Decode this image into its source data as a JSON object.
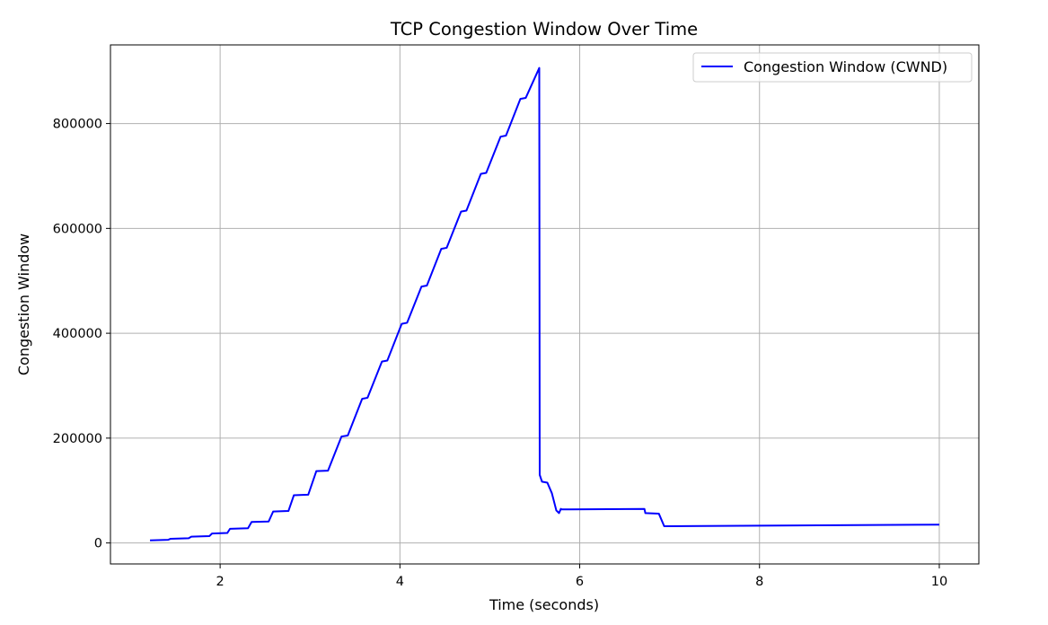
{
  "chart_data": {
    "type": "line",
    "title": "TCP Congestion Window Over Time",
    "xlabel": "Time (seconds)",
    "ylabel": "Congestion Window",
    "xlim": [
      0.78,
      10.44
    ],
    "ylim": [
      -40000,
      950000
    ],
    "x_ticks": [
      2,
      4,
      6,
      8,
      10
    ],
    "x_tick_labels": [
      "2",
      "4",
      "6",
      "8",
      "10"
    ],
    "y_ticks": [
      0,
      200000,
      400000,
      600000,
      800000
    ],
    "y_tick_labels": [
      "0",
      "200000",
      "400000",
      "600000",
      "800000"
    ],
    "grid": true,
    "legend": "top-right",
    "series": [
      {
        "name": "Congestion Window (CWND)",
        "color": "#0000ff",
        "x": [
          1.22,
          1.42,
          1.45,
          1.65,
          1.68,
          1.88,
          1.91,
          2.08,
          2.11,
          2.31,
          2.35,
          2.54,
          2.59,
          2.76,
          2.82,
          2.98,
          3.07,
          3.2,
          3.35,
          3.42,
          3.58,
          3.64,
          3.8,
          3.86,
          4.02,
          4.08,
          4.24,
          4.3,
          4.46,
          4.52,
          4.68,
          4.74,
          4.9,
          4.96,
          5.12,
          5.18,
          5.34,
          5.4,
          5.55,
          5.555,
          5.58,
          5.64,
          5.69,
          5.74,
          5.77,
          5.79,
          5.8,
          6.72,
          6.73,
          6.88,
          6.94,
          10.0
        ],
        "y": [
          5000,
          6000,
          8000,
          9000,
          12000,
          13000,
          18000,
          19000,
          27000,
          28000,
          40000,
          41000,
          60000,
          61000,
          91000,
          92000,
          137000,
          138000,
          203000,
          205000,
          275000,
          277000,
          346000,
          348000,
          418000,
          420000,
          489000,
          491000,
          561000,
          563000,
          632000,
          634000,
          704000,
          706000,
          775000,
          777000,
          847000,
          849000,
          906000,
          130000,
          117000,
          115000,
          95000,
          62000,
          57000,
          65000,
          64000,
          65000,
          57000,
          56000,
          32000,
          35000
        ]
      }
    ]
  }
}
